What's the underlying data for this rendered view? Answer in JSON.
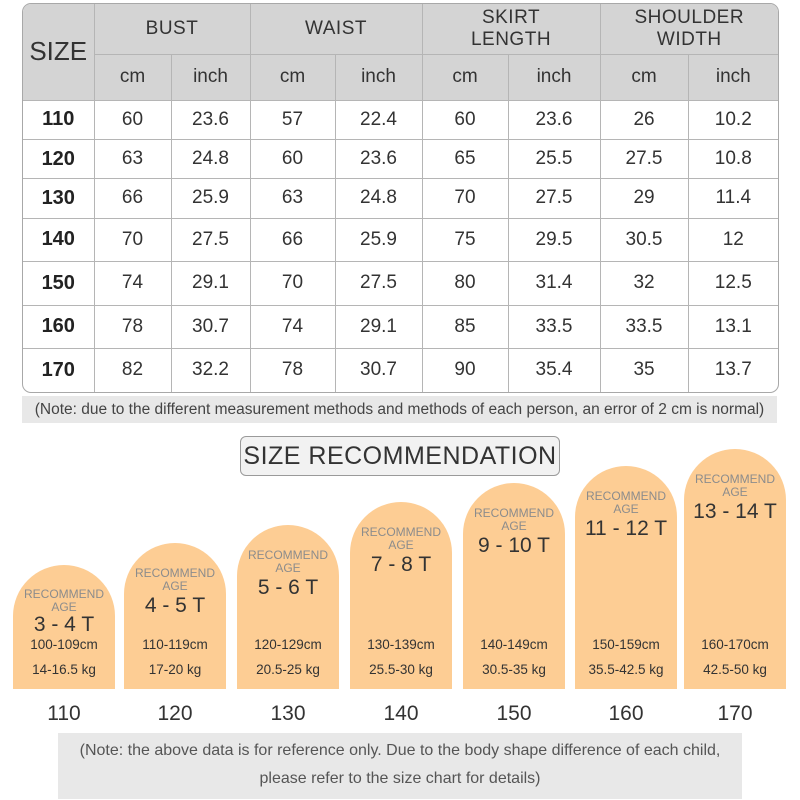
{
  "table": {
    "size_header": "SIZE",
    "groups": [
      "BUST",
      "WAIST",
      "SKIRT\nLENGTH",
      "SHOULDER\nWIDTH"
    ],
    "units": [
      "cm",
      "inch",
      "cm",
      "inch",
      "cm",
      "inch",
      "cm",
      "inch"
    ],
    "rows": [
      [
        "110",
        "60",
        "23.6",
        "57",
        "22.4",
        "60",
        "23.6",
        "26",
        "10.2"
      ],
      [
        "120",
        "63",
        "24.8",
        "60",
        "23.6",
        "65",
        "25.5",
        "27.5",
        "10.8"
      ],
      [
        "130",
        "66",
        "25.9",
        "63",
        "24.8",
        "70",
        "27.5",
        "29",
        "11.4"
      ],
      [
        "140",
        "70",
        "27.5",
        "66",
        "25.9",
        "75",
        "29.5",
        "30.5",
        "12"
      ],
      [
        "150",
        "74",
        "29.1",
        "70",
        "27.5",
        "80",
        "31.4",
        "32",
        "12.5"
      ],
      [
        "160",
        "78",
        "30.7",
        "74",
        "29.1",
        "85",
        "33.5",
        "33.5",
        "13.1"
      ],
      [
        "170",
        "82",
        "32.2",
        "78",
        "30.7",
        "90",
        "35.4",
        "35",
        "13.7"
      ]
    ]
  },
  "note_top": "(Note: due to the different measurement methods and methods of each person, an error of 2 cm is normal)",
  "recommendation_title": "SIZE RECOMMENDATION",
  "arch_color": "#fdcd94",
  "recommendations": [
    {
      "label": "RECOMMEND\nAGE",
      "age": "3 - 4 T",
      "height": "100-109cm",
      "weight": "14-16.5 kg",
      "size": "110"
    },
    {
      "label": "RECOMMEND\nAGE",
      "age": "4 - 5 T",
      "height": "110-119cm",
      "weight": "17-20 kg",
      "size": "120"
    },
    {
      "label": "RECOMMEND\nAGE",
      "age": "5 - 6 T",
      "height": "120-129cm",
      "weight": "20.5-25 kg",
      "size": "130"
    },
    {
      "label": "RECOMMEND\nAGE",
      "age": "7 - 8 T",
      "height": "130-139cm",
      "weight": "25.5-30 kg",
      "size": "140"
    },
    {
      "label": "RECOMMEND\nAGE",
      "age": "9 - 10 T",
      "height": "140-149cm",
      "weight": "30.5-35 kg",
      "size": "150"
    },
    {
      "label": "RECOMMEND\nAGE",
      "age": "11 - 12 T",
      "height": "150-159cm",
      "weight": "35.5-42.5 kg",
      "size": "160"
    },
    {
      "label": "RECOMMEND\nAGE",
      "age": "13 - 14 T",
      "height": "160-170cm",
      "weight": "42.5-50 kg",
      "size": "170"
    }
  ],
  "note_bottom_lines": [
    "(Note: the above data is for reference only. Due to the body shape difference of each child,",
    "please refer to the size chart for details)"
  ]
}
